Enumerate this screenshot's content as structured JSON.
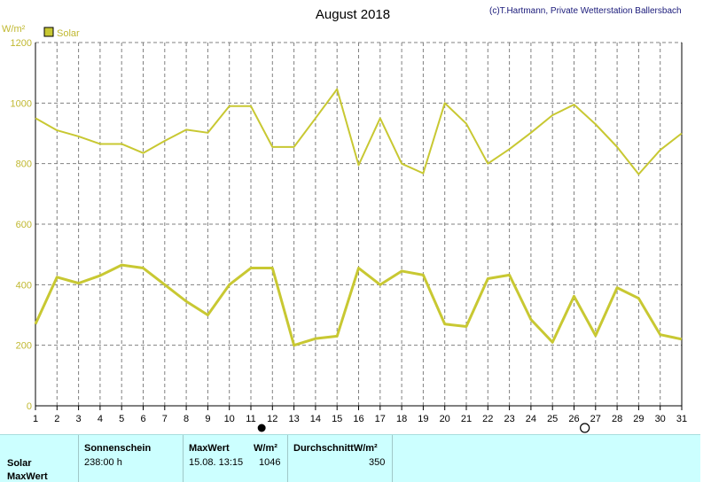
{
  "chart_data": {
    "type": "line",
    "title": "August 2018",
    "credit": "(c)T.Hartmann, Private Wetterstation Ballersbach",
    "ylabel": "W/m²",
    "ylim": [
      0,
      1200
    ],
    "yticks": [
      0,
      200,
      400,
      600,
      800,
      1000,
      1200
    ],
    "x": [
      1,
      2,
      3,
      4,
      5,
      6,
      7,
      8,
      9,
      10,
      11,
      12,
      13,
      14,
      15,
      16,
      17,
      18,
      19,
      20,
      21,
      22,
      23,
      24,
      25,
      26,
      27,
      28,
      29,
      30,
      31
    ],
    "grid": true,
    "legend": "top-left",
    "series": [
      {
        "name": "Solar",
        "role": "max",
        "color": "#c8c832",
        "values": [
          950,
          910,
          890,
          865,
          865,
          835,
          875,
          912,
          902,
          990,
          990,
          855,
          855,
          950,
          1046,
          795,
          950,
          800,
          768,
          1000,
          932,
          800,
          848,
          902,
          960,
          995,
          930,
          855,
          765,
          845,
          900
        ]
      },
      {
        "name": "",
        "role": "avg",
        "color": "#c8c832",
        "values": [
          270,
          425,
          405,
          430,
          465,
          455,
          400,
          345,
          300,
          400,
          455,
          455,
          200,
          222,
          230,
          455,
          400,
          445,
          432,
          270,
          262,
          420,
          432,
          285,
          210,
          362,
          232,
          390,
          355,
          235,
          220
        ]
      }
    ],
    "markers": {
      "full_moon_day": 11.5,
      "new_moon_day": 26.5
    }
  },
  "stats": {
    "row_labels": [
      "Solar",
      "MaxWert"
    ],
    "sun_header": "Sonnenschein",
    "sun_value": "238:00 h",
    "max_header": "MaxWert",
    "max_unit": "W/m²",
    "max_date": "15.08.  13:15",
    "max_value": "1046",
    "avg_header": "DurchschnittW/m²",
    "avg_value": "350"
  }
}
